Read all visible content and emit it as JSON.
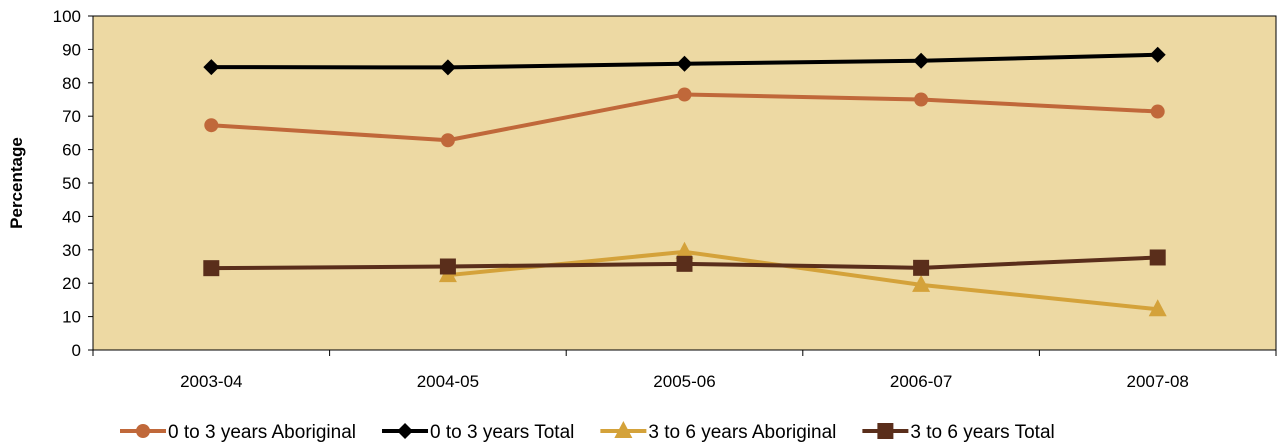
{
  "chart_data": {
    "type": "line",
    "title": "",
    "xlabel": "",
    "ylabel": "Percentage",
    "ylim": [
      0,
      100
    ],
    "yticks": [
      0,
      10,
      20,
      30,
      40,
      50,
      60,
      70,
      80,
      90,
      100
    ],
    "categories": [
      "2003-04",
      "2004-05",
      "2005-06",
      "2006-07",
      "2007-08"
    ],
    "grid": false,
    "legend_position": "bottom",
    "plot_background": "#EDD9A3",
    "series": [
      {
        "name": "0 to 3 years Aboriginal",
        "values": [
          67.3,
          62.8,
          76.5,
          75.0,
          71.4
        ],
        "color": "#C0683A",
        "marker": "circle"
      },
      {
        "name": "0 to 3 years Total",
        "values": [
          84.7,
          84.6,
          85.7,
          86.6,
          88.4
        ],
        "color": "#000000",
        "marker": "diamond"
      },
      {
        "name": "3 to 6 years Aboriginal",
        "values": [
          null,
          22.4,
          29.4,
          19.5,
          12.2
        ],
        "color": "#D4A23A",
        "marker": "triangle"
      },
      {
        "name": "3 to 6 years Total",
        "values": [
          24.5,
          25.0,
          25.8,
          24.6,
          27.7
        ],
        "color": "#5A2E1B",
        "marker": "square"
      }
    ]
  }
}
